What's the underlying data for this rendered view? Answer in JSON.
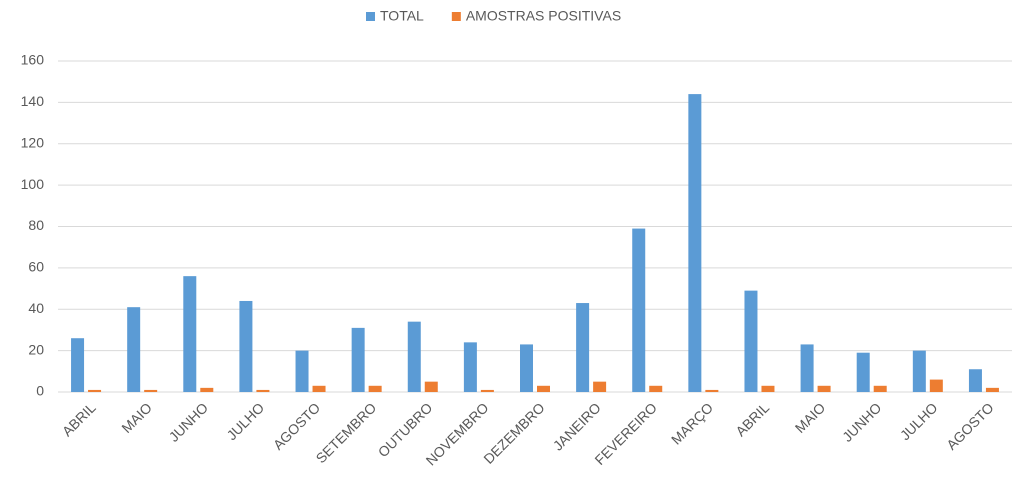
{
  "chart_data": {
    "type": "bar",
    "categories": [
      "ABRIL",
      "MAIO",
      "JUNHO",
      "JULHO",
      "AGOSTO",
      "SETEMBRO",
      "OUTUBRO",
      "NOVEMBRO",
      "DEZEMBRO",
      "JANEIRO",
      "FEVEREIRO",
      "MARÇO",
      "ABRIL",
      "MAIO",
      "JUNHO",
      "JULHO",
      "AGOSTO"
    ],
    "series": [
      {
        "name": "TOTAL",
        "color": "#5b9bd5",
        "values": [
          26,
          41,
          56,
          44,
          20,
          31,
          34,
          24,
          23,
          43,
          79,
          144,
          49,
          23,
          19,
          20,
          11
        ]
      },
      {
        "name": "AMOSTRAS POSITIVAS",
        "color": "#ed7d31",
        "values": [
          1,
          1,
          2,
          1,
          3,
          3,
          5,
          1,
          3,
          5,
          3,
          1,
          3,
          3,
          3,
          6,
          2
        ]
      }
    ],
    "ylim": [
      0,
      160
    ],
    "yticks": [
      0,
      20,
      40,
      60,
      80,
      100,
      120,
      140,
      160
    ],
    "grid": true,
    "legend": "top"
  }
}
